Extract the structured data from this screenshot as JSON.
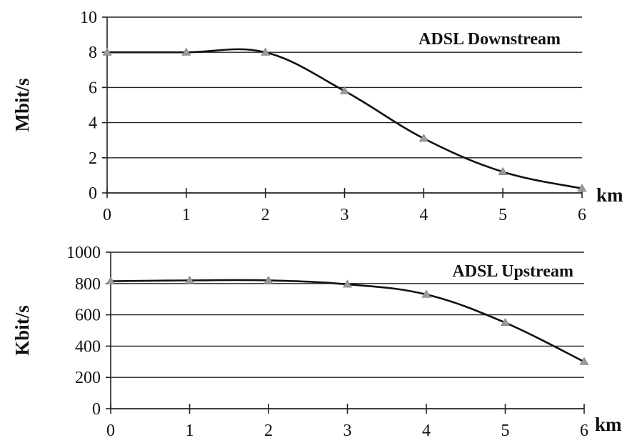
{
  "chart_data": [
    {
      "type": "line",
      "title": "ADSL Downstream",
      "ylabel": "Mbit/s",
      "xlabel": "km",
      "x": [
        0,
        1,
        2,
        3,
        4,
        5,
        6
      ],
      "series": [
        {
          "values": [
            8,
            8,
            8,
            5.8,
            3.1,
            1.2,
            0.25
          ]
        }
      ],
      "xticks": [
        "0",
        "1",
        "2",
        "3",
        "4",
        "5",
        "6"
      ],
      "yticks": [
        "0",
        "2",
        "4",
        "6",
        "8",
        "10"
      ],
      "xlim": [
        0,
        6
      ],
      "ylim": [
        0,
        10
      ],
      "grid": "horizontal",
      "colors": {
        "line": "#111111",
        "marker": "#9a9a9a"
      }
    },
    {
      "type": "line",
      "title": "ADSL Upstream",
      "ylabel": "Kbit/s",
      "xlabel": "km",
      "x": [
        0,
        1,
        2,
        3,
        4,
        5,
        6
      ],
      "series": [
        {
          "values": [
            815,
            820,
            820,
            795,
            730,
            550,
            300
          ]
        }
      ],
      "xticks": [
        "0",
        "1",
        "2",
        "3",
        "4",
        "5",
        "6"
      ],
      "yticks": [
        "0",
        "200",
        "400",
        "600",
        "800",
        "1000"
      ],
      "xlim": [
        0,
        6
      ],
      "ylim": [
        0,
        1000
      ],
      "grid": "horizontal",
      "colors": {
        "line": "#111111",
        "marker": "#9a9a9a"
      }
    }
  ]
}
